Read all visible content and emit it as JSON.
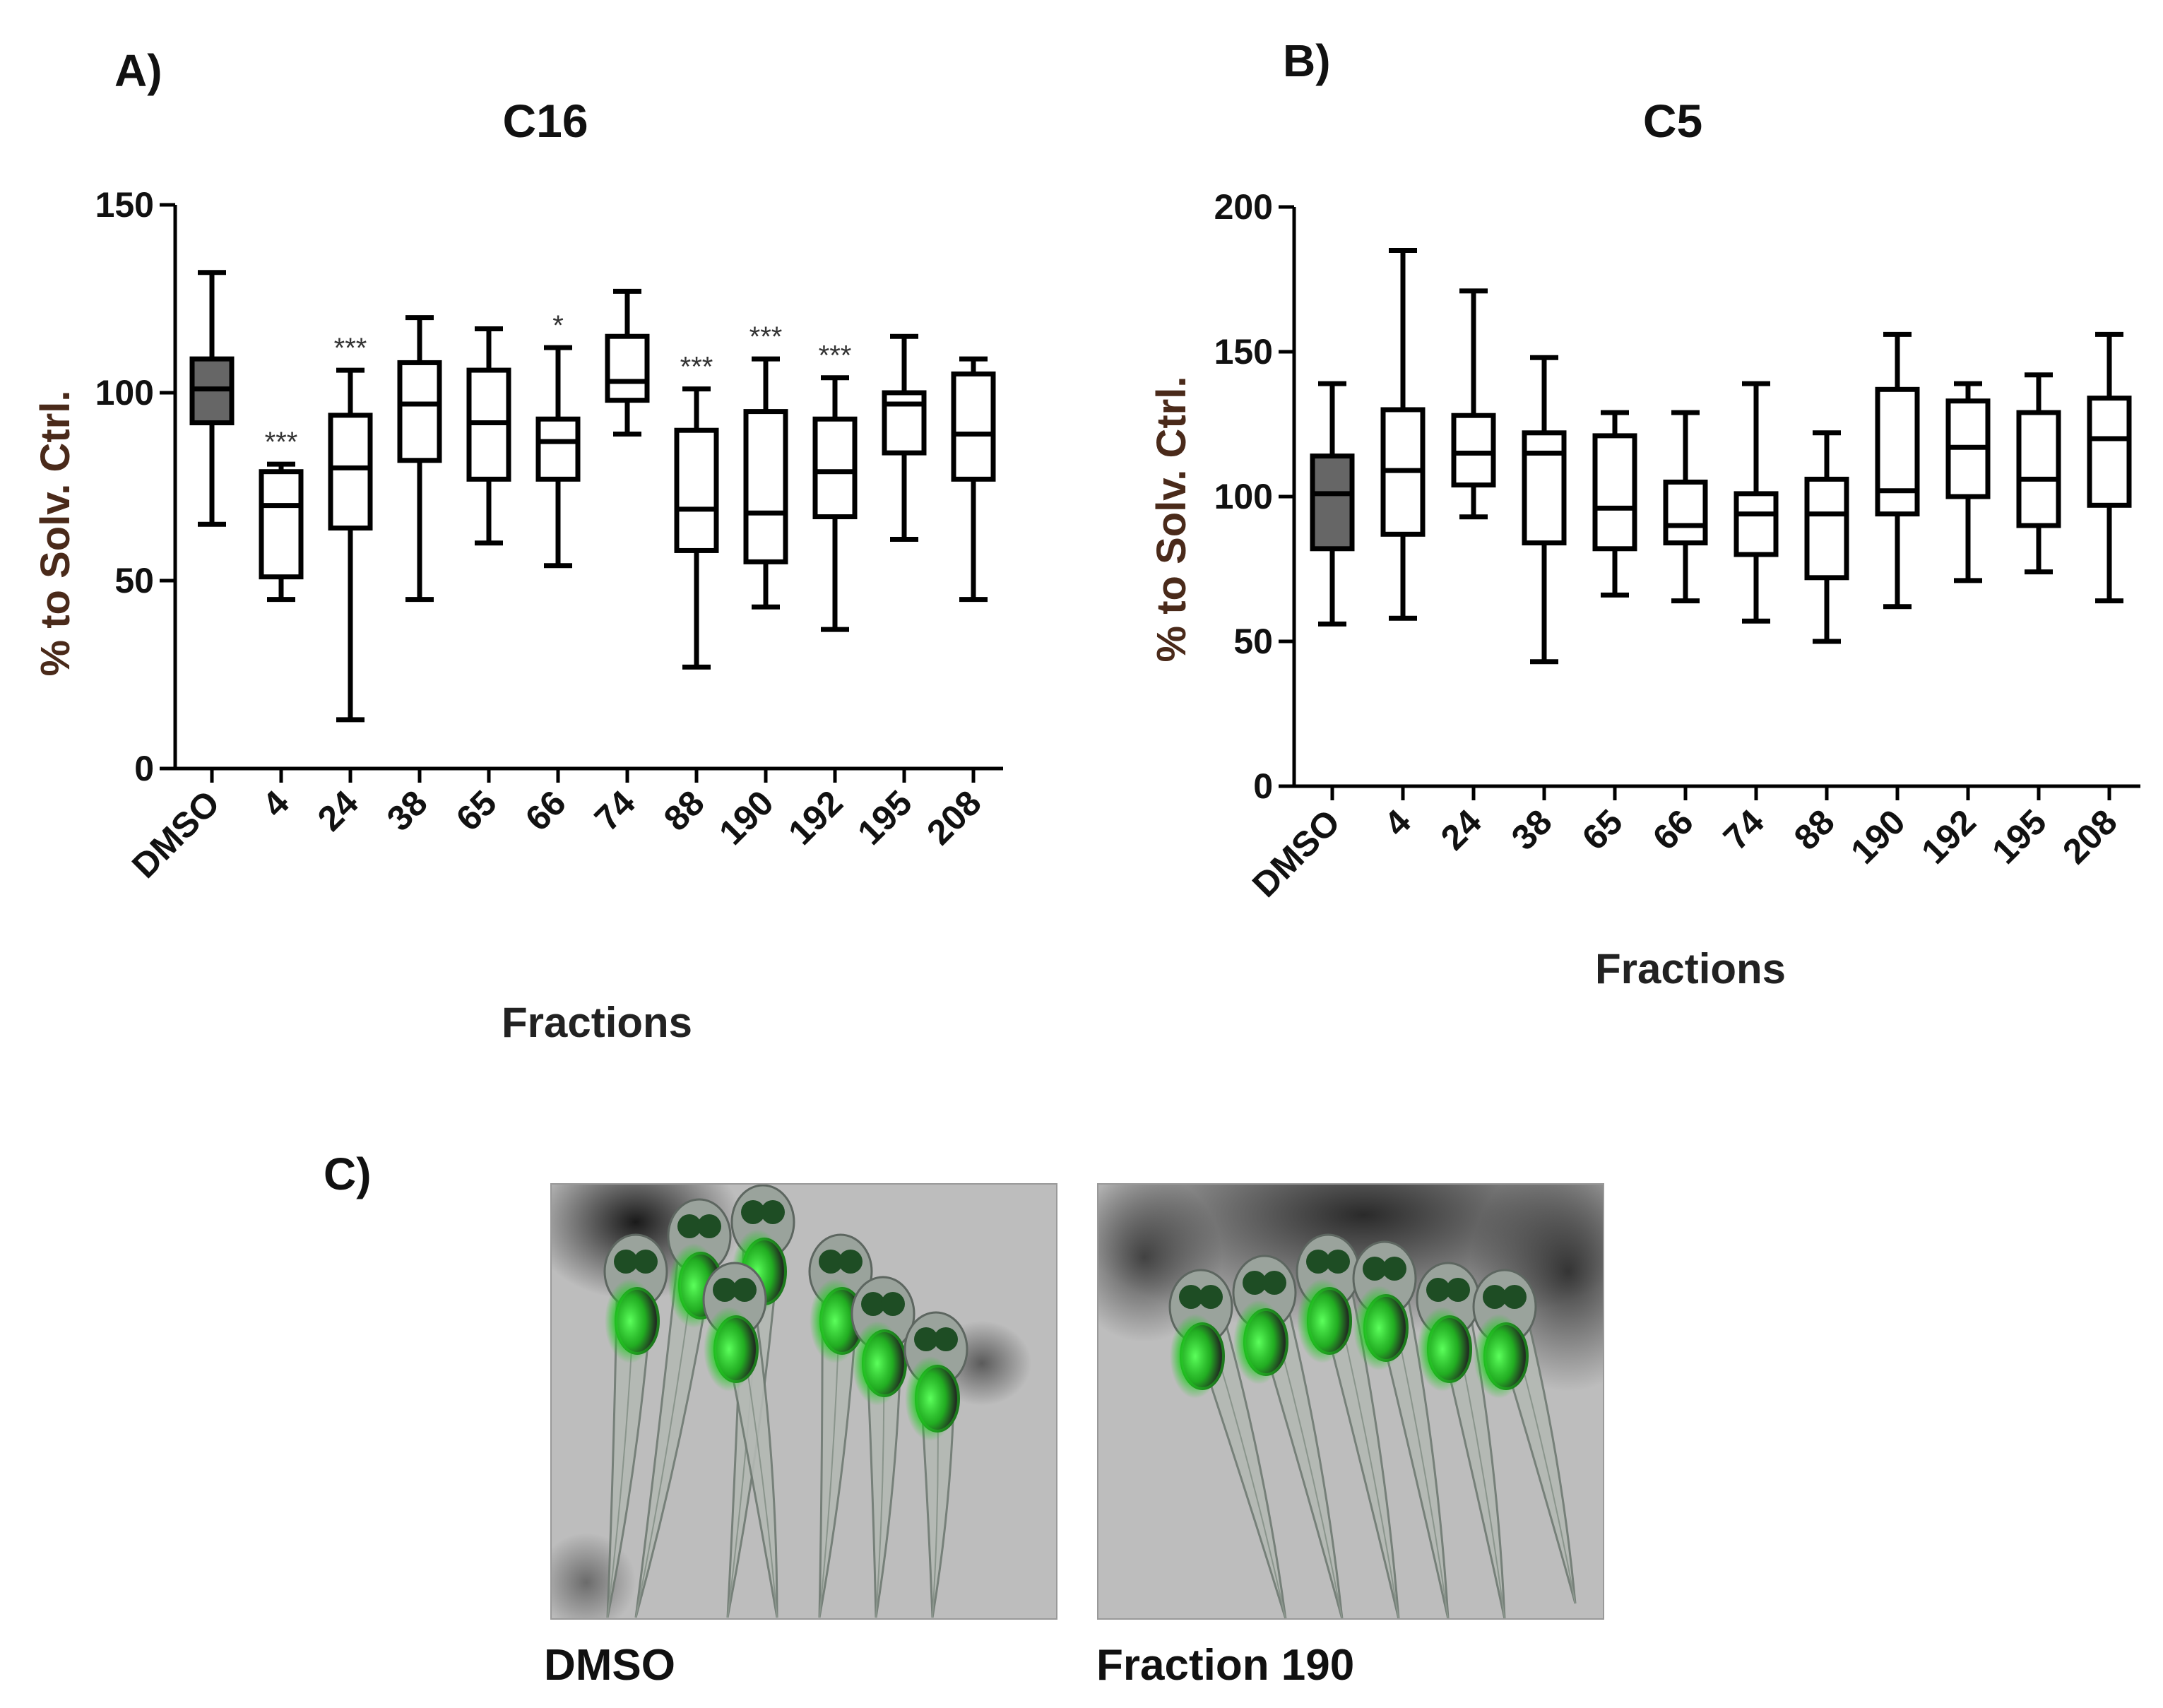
{
  "panels": {
    "a_label": "A)",
    "b_label": "B)",
    "c_label": "C)"
  },
  "colors": {
    "box_fill_control": "#666666",
    "box_fill_sample": "#ffffff",
    "stroke": "#000000",
    "ylabel": "#4a2a1a",
    "fluorescence": "#33dd33",
    "image_bg": "#bdbdbd"
  },
  "chart_data": [
    {
      "type": "box",
      "title": "C16",
      "xlabel": "Fractions",
      "ylabel": "% to Solv. Ctrl.",
      "ylim": [
        0,
        150
      ],
      "yticks": [
        0,
        50,
        100,
        150
      ],
      "categories": [
        "DMSO",
        "4",
        "24",
        "38",
        "65",
        "66",
        "74",
        "88",
        "190",
        "192",
        "195",
        "208"
      ],
      "boxes": [
        {
          "min": 65,
          "q1": 92,
          "median": 101,
          "q3": 109,
          "max": 132,
          "sig": ""
        },
        {
          "min": 45,
          "q1": 51,
          "median": 70,
          "q3": 79,
          "max": 81,
          "sig": "***"
        },
        {
          "min": 13,
          "q1": 64,
          "median": 80,
          "q3": 94,
          "max": 106,
          "sig": "***"
        },
        {
          "min": 45,
          "q1": 82,
          "median": 97,
          "q3": 108,
          "max": 120,
          "sig": ""
        },
        {
          "min": 60,
          "q1": 77,
          "median": 92,
          "q3": 106,
          "max": 117,
          "sig": ""
        },
        {
          "min": 54,
          "q1": 77,
          "median": 87,
          "q3": 93,
          "max": 112,
          "sig": "*"
        },
        {
          "min": 89,
          "q1": 98,
          "median": 103,
          "q3": 115,
          "max": 127,
          "sig": ""
        },
        {
          "min": 27,
          "q1": 58,
          "median": 69,
          "q3": 90,
          "max": 101,
          "sig": "***"
        },
        {
          "min": 43,
          "q1": 55,
          "median": 68,
          "q3": 95,
          "max": 109,
          "sig": "***"
        },
        {
          "min": 37,
          "q1": 67,
          "median": 79,
          "q3": 93,
          "max": 104,
          "sig": "***"
        },
        {
          "min": 61,
          "q1": 84,
          "median": 97,
          "q3": 100,
          "max": 115,
          "sig": ""
        },
        {
          "min": 45,
          "q1": 77,
          "median": 89,
          "q3": 105,
          "max": 109,
          "sig": ""
        }
      ]
    },
    {
      "type": "box",
      "title": "C5",
      "xlabel": "Fractions",
      "ylabel": "% to Solv. Ctrl.",
      "ylim": [
        0,
        200
      ],
      "yticks": [
        0,
        50,
        100,
        150,
        200
      ],
      "categories": [
        "DMSO",
        "4",
        "24",
        "38",
        "65",
        "66",
        "74",
        "88",
        "190",
        "192",
        "195",
        "208"
      ],
      "boxes": [
        {
          "min": 56,
          "q1": 82,
          "median": 101,
          "q3": 114,
          "max": 139,
          "sig": ""
        },
        {
          "min": 58,
          "q1": 87,
          "median": 109,
          "q3": 130,
          "max": 185,
          "sig": ""
        },
        {
          "min": 93,
          "q1": 104,
          "median": 115,
          "q3": 128,
          "max": 171,
          "sig": ""
        },
        {
          "min": 43,
          "q1": 84,
          "median": 115,
          "q3": 122,
          "max": 148,
          "sig": ""
        },
        {
          "min": 66,
          "q1": 82,
          "median": 96,
          "q3": 121,
          "max": 129,
          "sig": ""
        },
        {
          "min": 64,
          "q1": 84,
          "median": 90,
          "q3": 105,
          "max": 129,
          "sig": ""
        },
        {
          "min": 57,
          "q1": 80,
          "median": 94,
          "q3": 101,
          "max": 139,
          "sig": ""
        },
        {
          "min": 50,
          "q1": 72,
          "median": 94,
          "q3": 106,
          "max": 122,
          "sig": ""
        },
        {
          "min": 62,
          "q1": 94,
          "median": 102,
          "q3": 137,
          "max": 156,
          "sig": ""
        },
        {
          "min": 71,
          "q1": 100,
          "median": 117,
          "q3": 133,
          "max": 139,
          "sig": ""
        },
        {
          "min": 74,
          "q1": 90,
          "median": 106,
          "q3": 129,
          "max": 142,
          "sig": ""
        },
        {
          "min": 64,
          "q1": 97,
          "median": 120,
          "q3": 134,
          "max": 156,
          "sig": ""
        }
      ]
    }
  ],
  "images": [
    {
      "caption": "DMSO"
    },
    {
      "caption": "Fraction 190"
    }
  ]
}
